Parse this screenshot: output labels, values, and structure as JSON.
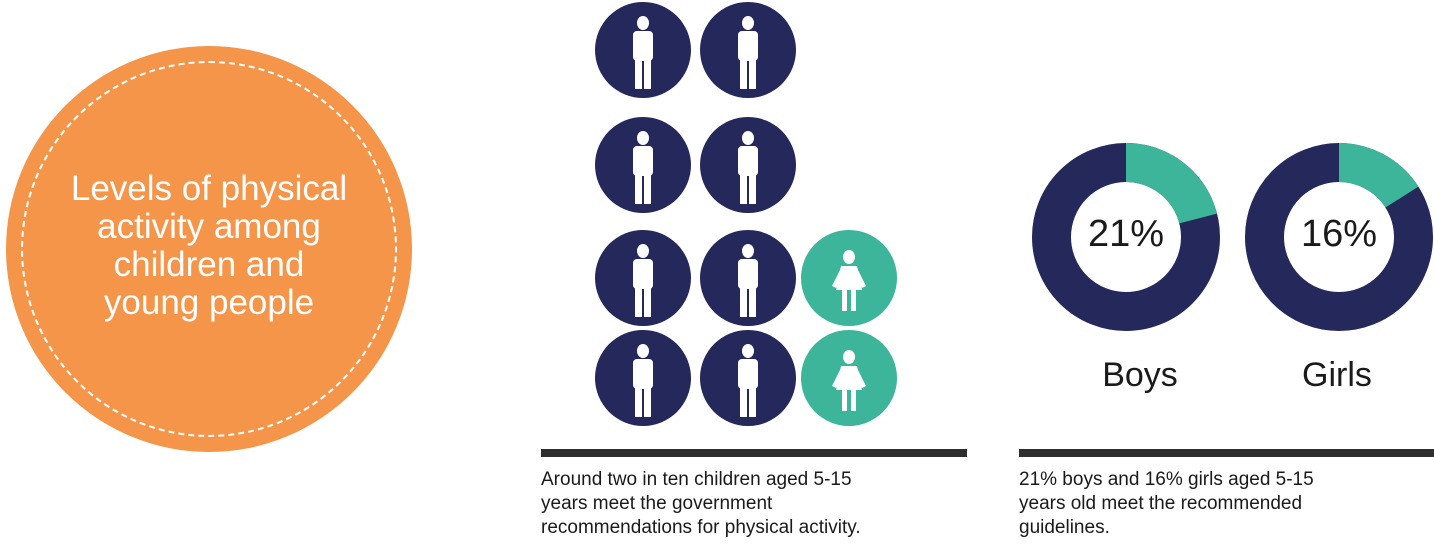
{
  "title": "Levels of physical\nactivity among\nchildren and\nyoung people",
  "colors": {
    "orange": "#F4954A",
    "navy": "#24285A",
    "teal": "#3CB59A",
    "rule": "#2E2E2E"
  },
  "pictogram": {
    "caption": "Around two in ten children aged 5-15\nyears meet the government\nrecommendations for physical activity.",
    "rows": [
      [
        "navy-adult-icon",
        "navy-adult-icon"
      ],
      [
        "navy-adult-icon",
        "navy-adult-icon"
      ],
      [
        "navy-adult-icon",
        "navy-adult-icon",
        "teal-child-icon"
      ],
      [
        "navy-adult-icon",
        "navy-adult-icon",
        "teal-child-icon"
      ]
    ]
  },
  "donuts": {
    "caption": "21% boys and 16% girls aged 5-15\nyears old meet the recommended\nguidelines.",
    "items": [
      {
        "label": "Boys",
        "percent_text": "21%",
        "value": 21
      },
      {
        "label": "Girls",
        "percent_text": "16%",
        "value": 16
      }
    ]
  }
}
